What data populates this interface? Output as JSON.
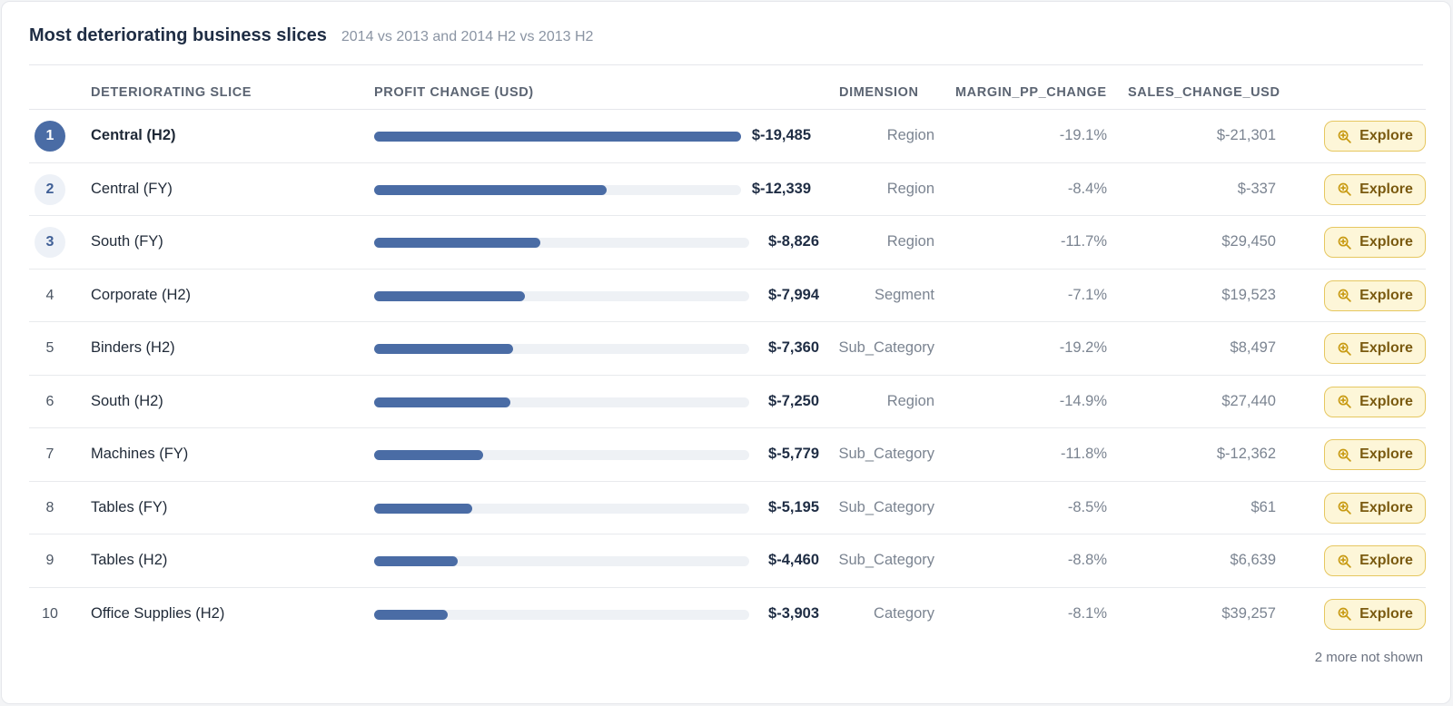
{
  "header": {
    "title": "Most deteriorating business slices",
    "subtitle": "2014 vs 2013 and 2014 H2 vs 2013 H2"
  },
  "columns": {
    "slice": "DETERIORATING SLICE",
    "profit": "PROFIT CHANGE (USD)",
    "dimension": "DIMENSION",
    "margin": "MARGIN_PP_CHANGE",
    "sales": "SALES_CHANGE_USD"
  },
  "rows": [
    {
      "rank": "1",
      "slice": "Central (H2)",
      "profit": "$-19,485",
      "profit_value": -19485,
      "dimension": "Region",
      "margin": "-19.1%",
      "sales": "$-21,301",
      "action": "Explore"
    },
    {
      "rank": "2",
      "slice": "Central (FY)",
      "profit": "$-12,339",
      "profit_value": -12339,
      "dimension": "Region",
      "margin": "-8.4%",
      "sales": "$-337",
      "action": "Explore"
    },
    {
      "rank": "3",
      "slice": "South (FY)",
      "profit": "$-8,826",
      "profit_value": -8826,
      "dimension": "Region",
      "margin": "-11.7%",
      "sales": "$29,450",
      "action": "Explore"
    },
    {
      "rank": "4",
      "slice": "Corporate (H2)",
      "profit": "$-7,994",
      "profit_value": -7994,
      "dimension": "Segment",
      "margin": "-7.1%",
      "sales": "$19,523",
      "action": "Explore"
    },
    {
      "rank": "5",
      "slice": "Binders (H2)",
      "profit": "$-7,360",
      "profit_value": -7360,
      "dimension": "Sub_Category",
      "margin": "-19.2%",
      "sales": "$8,497",
      "action": "Explore"
    },
    {
      "rank": "6",
      "slice": "South (H2)",
      "profit": "$-7,250",
      "profit_value": -7250,
      "dimension": "Region",
      "margin": "-14.9%",
      "sales": "$27,440",
      "action": "Explore"
    },
    {
      "rank": "7",
      "slice": "Machines (FY)",
      "profit": "$-5,779",
      "profit_value": -5779,
      "dimension": "Sub_Category",
      "margin": "-11.8%",
      "sales": "$-12,362",
      "action": "Explore"
    },
    {
      "rank": "8",
      "slice": "Tables (FY)",
      "profit": "$-5,195",
      "profit_value": -5195,
      "dimension": "Sub_Category",
      "margin": "-8.5%",
      "sales": "$61",
      "action": "Explore"
    },
    {
      "rank": "9",
      "slice": "Tables (H2)",
      "profit": "$-4,460",
      "profit_value": -4460,
      "dimension": "Sub_Category",
      "margin": "-8.8%",
      "sales": "$6,639",
      "action": "Explore"
    },
    {
      "rank": "10",
      "slice": "Office Supplies (H2)",
      "profit": "$-3,903",
      "profit_value": -3903,
      "dimension": "Category",
      "margin": "-8.1%",
      "sales": "$39,257",
      "action": "Explore"
    }
  ],
  "footer": {
    "note": "2 more not shown"
  },
  "colors": {
    "bar": "#4a6ca5",
    "track": "#eef1f5",
    "explore_bg": "#fdf6d8",
    "explore_border": "#e6c760"
  },
  "icons": {
    "explore": "zoom-in-icon"
  }
}
